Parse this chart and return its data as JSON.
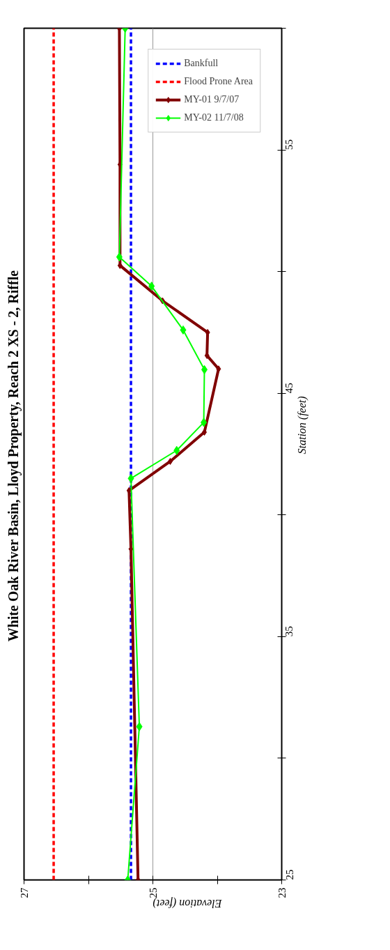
{
  "chart_data": {
    "type": "line",
    "title": "White Oak River Basin, Lloyd Property,  Reach 2 XS - 2, Riffle",
    "xlabel": "Elevation (feet)",
    "ylabel": "Station (feet)",
    "xlim": [
      27,
      23
    ],
    "ylim": [
      25,
      60
    ],
    "xticks": [
      27,
      {
        "value": 26,
        "label": null
      },
      25,
      {
        "value": 24,
        "label": null
      },
      23
    ],
    "yticks": [
      25,
      {
        "value": 30,
        "label": null
      },
      35,
      {
        "value": 40,
        "label": null
      },
      45,
      {
        "value": 50,
        "label": null
      },
      55,
      {
        "value": 60,
        "label": null
      }
    ],
    "grid": "x",
    "legend": "top right",
    "marker": "diamond",
    "series": [
      {
        "name": "Bankfull",
        "color": "#0000ff",
        "line_style": "dashed",
        "marker": "none",
        "x": [
          25.34,
          25.34
        ],
        "values": [
          25,
          60
        ]
      },
      {
        "name": "Flood Prone Area",
        "color": "#ff0000",
        "line_style": "dashed",
        "marker": "none",
        "x": [
          26.54,
          26.54
        ],
        "values": [
          25,
          60
        ]
      },
      {
        "name": "MY-01 9/7/07",
        "color": "#800000",
        "x": [
          25.23,
          25.34,
          25.37,
          24.73,
          24.2,
          23.98,
          24.16,
          24.15,
          24.85,
          25.51,
          25.51,
          25.52
        ],
        "values": [
          25,
          38.6,
          41.0,
          42.2,
          43.4,
          46.0,
          46.55,
          47.5,
          48.8,
          50.25,
          54.4,
          60
        ]
      },
      {
        "name": "MY-02 11/7/08",
        "color": "#00ff00",
        "x": [
          25.39,
          25.21,
          25.34,
          24.63,
          24.21,
          24.2,
          24.53,
          25.02,
          25.52,
          25.43
        ],
        "values": [
          25,
          31.3,
          41.5,
          42.65,
          43.8,
          45.97,
          47.6,
          49.4,
          50.6,
          60
        ]
      }
    ]
  }
}
